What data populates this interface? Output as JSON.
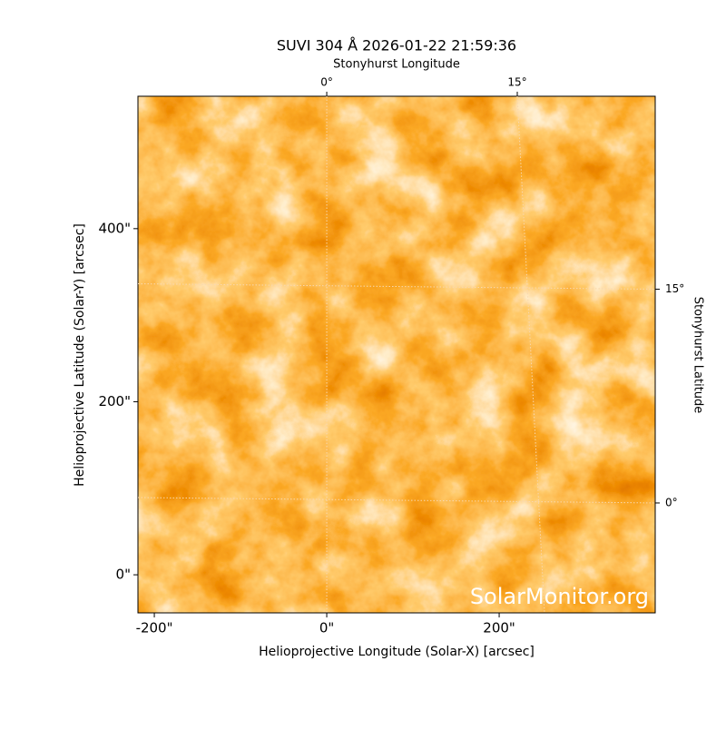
{
  "chart_data": {
    "type": "image",
    "title": "SUVI 304 Å 2026-01-22 21:59:36",
    "xlabel": "Helioprojective Longitude (Solar-X) [arcsec]",
    "ylabel": "Helioprojective Latitude (Solar-Y) [arcsec]",
    "top_label": "Stonyhurst Longitude",
    "right_label": "Stonyhurst Latitude",
    "watermark": "SolarMonitor.org",
    "xlim": [
      -219,
      381
    ],
    "ylim": [
      -44,
      553
    ],
    "xticks": [
      {
        "value": -200,
        "label": "-200\""
      },
      {
        "value": 0,
        "label": "0\""
      },
      {
        "value": 200,
        "label": "200\""
      }
    ],
    "yticks": [
      {
        "value": 0,
        "label": "0\""
      },
      {
        "value": 200,
        "label": "200\""
      },
      {
        "value": 400,
        "label": "400\""
      }
    ],
    "lon_ticks": [
      {
        "value": 0,
        "label": "0°",
        "x": 0
      },
      {
        "value": 15,
        "label": "15°",
        "x": 221
      }
    ],
    "lat_ticks": [
      {
        "value": 0,
        "label": "0°",
        "y": 83
      },
      {
        "value": 15,
        "label": "15°",
        "y": 330
      }
    ],
    "grid": true
  }
}
